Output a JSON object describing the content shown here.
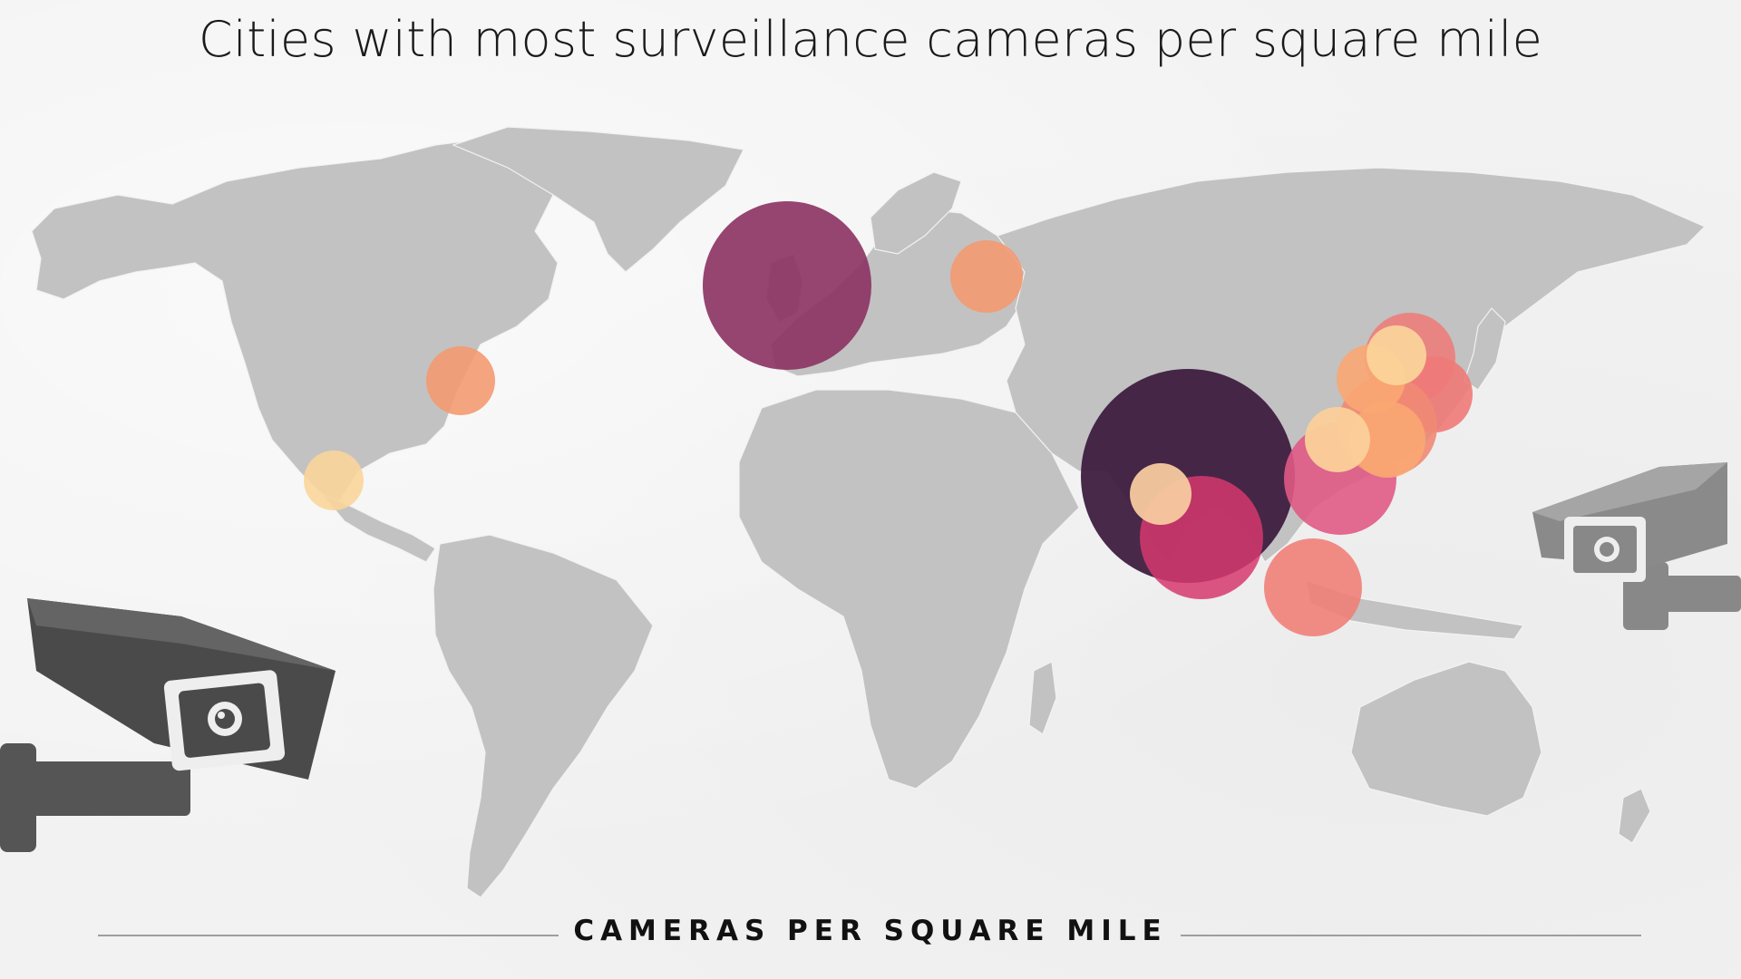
{
  "title": "Cities with most surveillance cameras per square mile",
  "legend": {
    "label": "CAMERAS PER SQUARE MILE"
  },
  "colors": {
    "land": "#c2c2c2",
    "background": "#f2f2f2",
    "scale": [
      "#fbd59a",
      "#f8a174",
      "#ee7a78",
      "#d44a73",
      "#8c3564",
      "#3e1d40"
    ]
  },
  "icons": [
    "security-camera-icon-left",
    "security-camera-icon-right"
  ]
}
